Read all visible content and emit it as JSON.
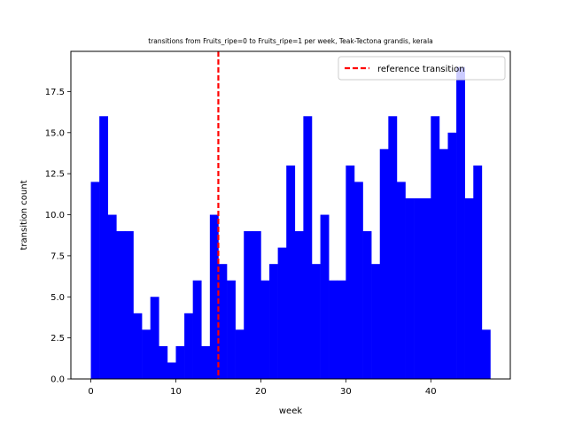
{
  "chart_data": {
    "type": "bar",
    "title": "transitions from Fruits_ripe=0 to Fruits_ripe=1 per week, Teak-Tectona grandis, kerala",
    "xlabel": "week",
    "ylabel": "transition count",
    "xlim": [
      -2.35,
      49.35
    ],
    "ylim": [
      0,
      19.95
    ],
    "bin_width": 1,
    "x": [
      0,
      1,
      2,
      3,
      4,
      5,
      6,
      7,
      8,
      9,
      10,
      11,
      12,
      13,
      14,
      15,
      16,
      17,
      18,
      19,
      20,
      21,
      22,
      23,
      24,
      25,
      26,
      27,
      28,
      29,
      30,
      31,
      32,
      33,
      34,
      35,
      36,
      37,
      38,
      39,
      40,
      41,
      42,
      43,
      44,
      45,
      46
    ],
    "values": [
      12,
      16,
      10,
      9,
      9,
      4,
      3,
      5,
      2,
      1,
      2,
      4,
      6,
      2,
      10,
      7,
      6,
      3,
      9,
      9,
      6,
      7,
      8,
      13,
      9,
      16,
      7,
      10,
      6,
      6,
      13,
      12,
      9,
      7,
      14,
      16,
      12,
      11,
      11,
      11,
      16,
      14,
      15,
      19,
      11,
      13,
      3
    ],
    "bar_color": "#0000ff",
    "xticks": [
      0,
      10,
      20,
      30,
      40
    ],
    "xtick_labels": [
      "0",
      "10",
      "20",
      "30",
      "40"
    ],
    "yticks": [
      0,
      2.5,
      5,
      7.5,
      10,
      12.5,
      15,
      17.5
    ],
    "ytick_labels": [
      "0.0",
      "2.5",
      "5.0",
      "7.5",
      "10.0",
      "12.5",
      "15.0",
      "17.5"
    ],
    "reference_line": {
      "x": 15,
      "color": "#ff0000",
      "style": "dashed",
      "label": "reference transition"
    },
    "legend": {
      "position": "top-right",
      "entries": [
        "reference transition"
      ]
    },
    "grid": false
  }
}
